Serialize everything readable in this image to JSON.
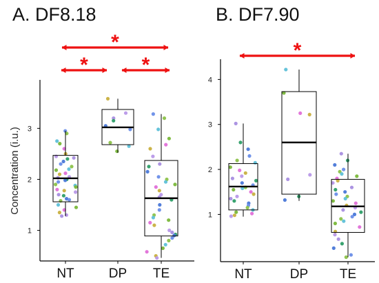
{
  "colors": {
    "significance": "#ee1111",
    "box": "#000000",
    "axis": "#000000",
    "point_palette": [
      "#6a8ee8",
      "#a88ee0",
      "#e070d8",
      "#8cc24a",
      "#2e9e68",
      "#c8b040",
      "#5ec0d8",
      "#4a78d8",
      "#b898e8",
      "#7ab83a"
    ]
  },
  "chart_data": [
    {
      "type": "box",
      "title": "A. DF8.18",
      "ylabel": "Concentration (i.u.)",
      "xlabel": "",
      "categories": [
        "NT",
        "DP",
        "TE"
      ],
      "yticks": [
        1,
        2,
        3
      ],
      "ylim": [
        0.4,
        3.95
      ],
      "boxes": [
        {
          "category": "NT",
          "q1": 1.56,
          "median": 2.02,
          "q3": 2.47,
          "whisker_low": 1.28,
          "whisker_high": 2.95,
          "points": [
            2.95,
            2.9,
            2.75,
            2.7,
            2.6,
            2.5,
            2.45,
            2.42,
            2.4,
            2.35,
            2.3,
            2.25,
            2.2,
            2.18,
            2.12,
            2.1,
            2.05,
            2.03,
            2.0,
            1.98,
            1.95,
            1.9,
            1.88,
            1.85,
            1.8,
            1.78,
            1.75,
            1.7,
            1.68,
            1.62,
            1.6,
            1.58,
            1.5,
            1.45,
            1.4,
            1.35,
            1.3,
            1.28
          ]
        },
        {
          "category": "DP",
          "q1": 2.68,
          "median": 3.02,
          "q3": 3.37,
          "whisker_low": 2.52,
          "whisker_high": 3.58,
          "points": [
            3.58,
            3.3,
            3.2,
            3.15,
            3.05,
            2.98,
            2.72,
            2.65,
            2.55
          ]
        },
        {
          "category": "TE",
          "q1": 0.89,
          "median": 1.63,
          "q3": 2.37,
          "whisker_low": 0.46,
          "whisker_high": 3.28,
          "points": [
            3.28,
            3.2,
            2.98,
            2.8,
            2.68,
            2.6,
            2.45,
            2.3,
            2.25,
            2.15,
            2.05,
            2.0,
            1.95,
            1.9,
            1.85,
            1.78,
            1.7,
            1.65,
            1.6,
            1.5,
            1.4,
            1.3,
            1.25,
            1.2,
            1.15,
            1.1,
            1.0,
            0.96,
            0.92,
            0.9,
            0.85,
            0.8,
            0.72,
            0.65,
            0.58,
            0.5,
            0.46
          ]
        }
      ],
      "significance": [
        {
          "from": "NT",
          "to": "TE",
          "label": "*",
          "row": 1
        },
        {
          "from": "NT",
          "to": "DP",
          "label": "*",
          "row": 2
        },
        {
          "from": "DP",
          "to": "TE",
          "label": "*",
          "row": 2
        }
      ]
    },
    {
      "type": "box",
      "title": "B. DF7.90",
      "ylabel": "",
      "xlabel": "",
      "categories": [
        "NT",
        "DP",
        "TE"
      ],
      "yticks": [
        1,
        2,
        3,
        4
      ],
      "ylim": [
        -0.05,
        4.45
      ],
      "boxes": [
        {
          "category": "NT",
          "q1": 1.1,
          "median": 1.62,
          "q3": 2.13,
          "whisker_low": 0.95,
          "whisker_high": 3.02,
          "points": [
            3.02,
            2.6,
            2.45,
            2.3,
            2.2,
            2.15,
            2.05,
            1.98,
            1.92,
            1.85,
            1.8,
            1.75,
            1.7,
            1.65,
            1.6,
            1.58,
            1.55,
            1.5,
            1.45,
            1.4,
            1.35,
            1.3,
            1.25,
            1.2,
            1.15,
            1.1,
            1.05,
            1.02,
            0.98,
            0.96
          ]
        },
        {
          "category": "DP",
          "q1": 1.45,
          "median": 2.6,
          "q3": 3.73,
          "whisker_low": 1.3,
          "whisker_high": 4.22,
          "points": [
            4.22,
            3.7,
            3.25,
            3.22,
            1.88,
            1.78,
            1.4,
            1.32
          ]
        },
        {
          "category": "TE",
          "q1": 0.6,
          "median": 1.18,
          "q3": 1.78,
          "whisker_low": 0.05,
          "whisker_high": 2.35,
          "points": [
            2.35,
            2.2,
            2.1,
            2.0,
            1.95,
            1.9,
            1.85,
            1.8,
            1.75,
            1.7,
            1.6,
            1.55,
            1.5,
            1.45,
            1.4,
            1.35,
            1.3,
            1.25,
            1.2,
            1.15,
            1.1,
            1.05,
            1.0,
            0.95,
            0.9,
            0.85,
            0.8,
            0.72,
            0.62,
            0.55,
            0.45,
            0.35,
            0.25,
            0.1,
            0.05
          ]
        }
      ],
      "significance": [
        {
          "from": "NT",
          "to": "TE",
          "label": "*",
          "row": 1
        }
      ]
    }
  ]
}
